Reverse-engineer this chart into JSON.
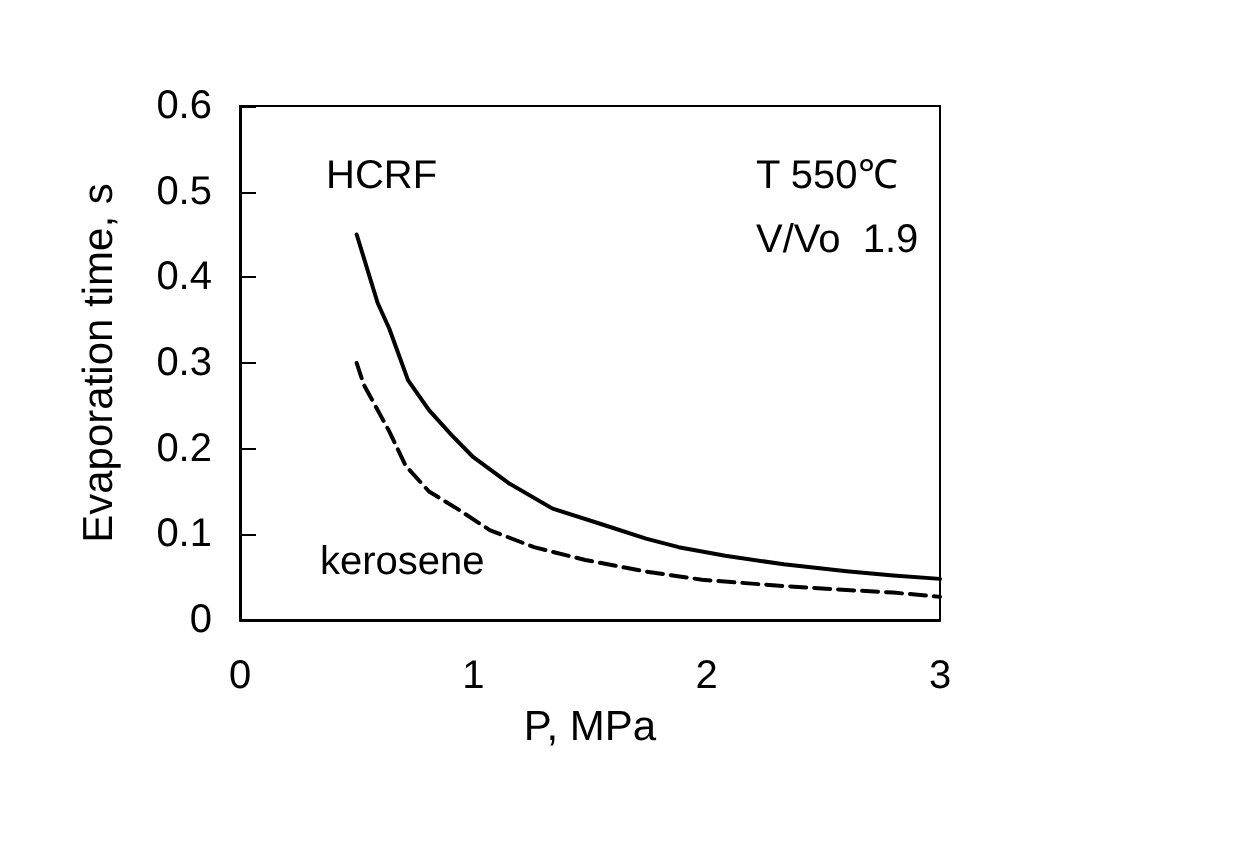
{
  "chart_data": {
    "type": "line",
    "xlabel": "P, MPa",
    "ylabel": "Evaporation time, s",
    "xlim": [
      0,
      3
    ],
    "xticks": [
      0,
      1,
      2,
      3
    ],
    "ylim": [
      0,
      0.6
    ],
    "yticks": [
      0,
      0.1,
      0.2,
      0.3,
      0.4,
      0.5,
      0.6
    ],
    "grid": false,
    "legend": false,
    "marker": "none",
    "annotations": [
      "T 550℃",
      "V/Vo  1.9"
    ],
    "series": [
      {
        "name": "HCRF",
        "color": "#000000",
        "line_style": "solid",
        "x": [
          0.5,
          0.59,
          0.64,
          0.72,
          0.81,
          0.91,
          1.0,
          1.15,
          1.34,
          1.57,
          1.74,
          1.88,
          2.08,
          2.33,
          2.6,
          2.8,
          3.0
        ],
        "values": [
          0.45,
          0.37,
          0.34,
          0.28,
          0.245,
          0.215,
          0.19,
          0.16,
          0.13,
          0.11,
          0.095,
          0.085,
          0.075,
          0.065,
          0.057,
          0.052,
          0.048
        ]
      },
      {
        "name": "kerosene",
        "color": "#000000",
        "line_style": "dashed",
        "x": [
          0.5,
          0.53,
          0.64,
          0.71,
          0.81,
          0.93,
          1.07,
          1.26,
          1.48,
          1.73,
          1.98,
          2.31,
          2.6,
          2.8,
          3.0
        ],
        "values": [
          0.3,
          0.275,
          0.22,
          0.18,
          0.15,
          0.13,
          0.105,
          0.085,
          0.07,
          0.057,
          0.047,
          0.04,
          0.035,
          0.032,
          0.027
        ]
      }
    ]
  }
}
